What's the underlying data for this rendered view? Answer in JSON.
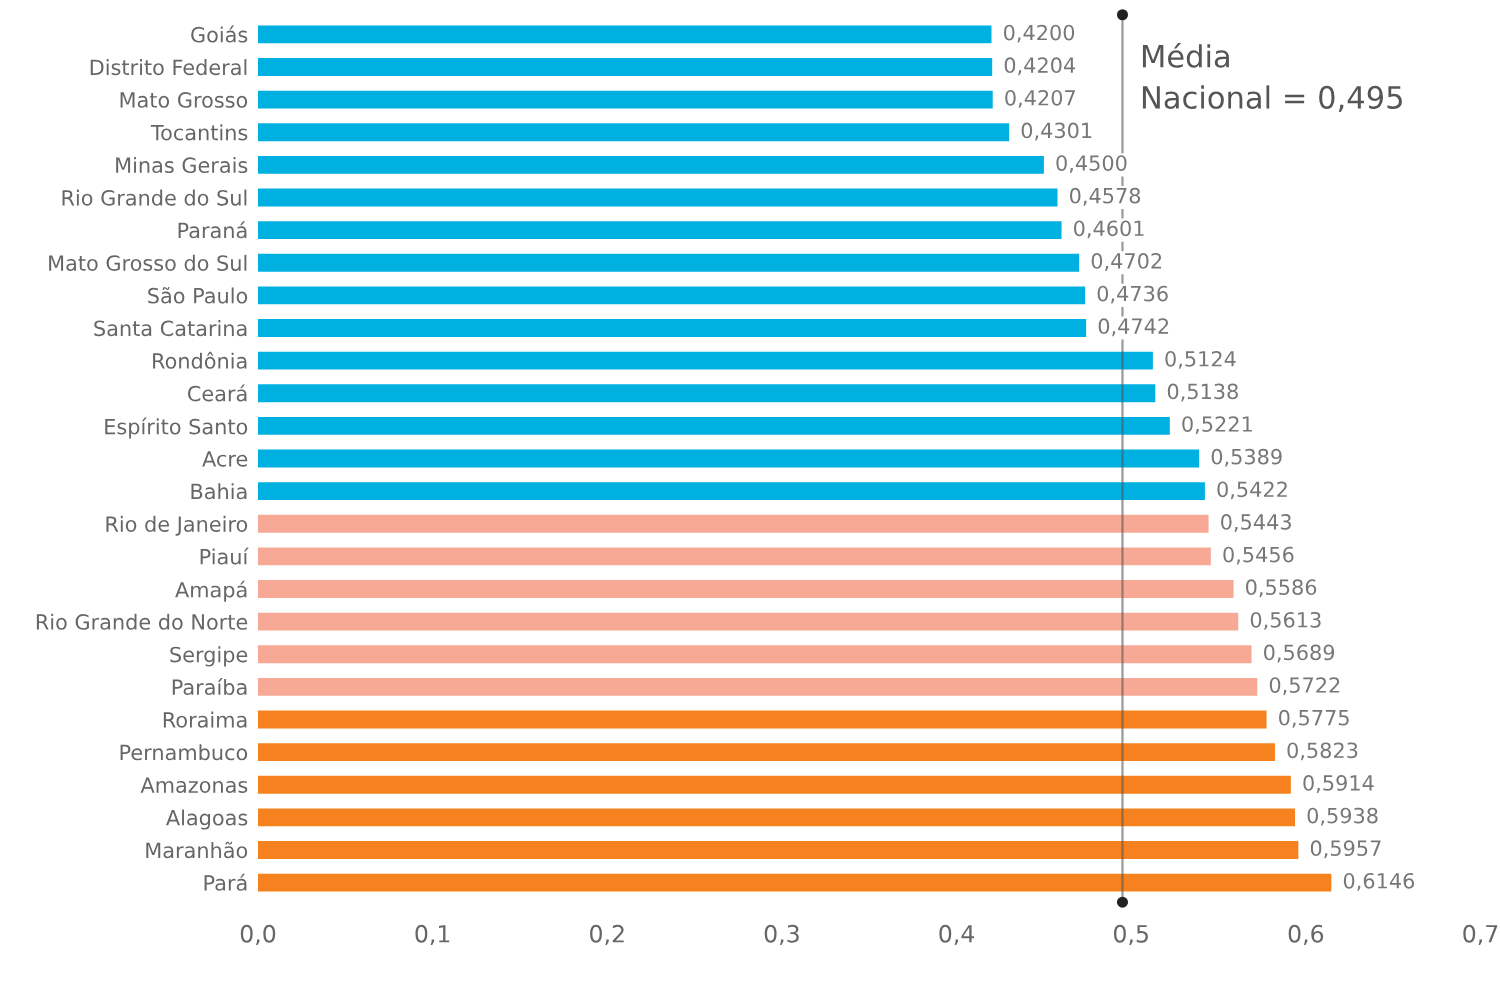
{
  "chart_data": {
    "type": "bar",
    "orientation": "horizontal",
    "categories": [
      "Goiás",
      "Distrito Federal",
      "Mato Grosso",
      "Tocantins",
      "Minas Gerais",
      "Rio Grande do Sul",
      "Paraná",
      "Mato Grosso do Sul",
      "São Paulo",
      "Santa Catarina",
      "Rondônia",
      "Ceará",
      "Espírito Santo",
      "Acre",
      "Bahia",
      "Rio de Janeiro",
      "Piauí",
      "Amapá",
      "Rio Grande do Norte",
      "Sergipe",
      "Paraíba",
      "Roraima",
      "Pernambuco",
      "Amazonas",
      "Alagoas",
      "Maranhão",
      "Pará"
    ],
    "values": [
      0.42,
      0.4204,
      0.4207,
      0.4301,
      0.45,
      0.4578,
      0.4601,
      0.4702,
      0.4736,
      0.4742,
      0.5124,
      0.5138,
      0.5221,
      0.5389,
      0.5422,
      0.5443,
      0.5456,
      0.5586,
      0.5613,
      0.5689,
      0.5722,
      0.5775,
      0.5823,
      0.5914,
      0.5938,
      0.5957,
      0.6146
    ],
    "value_labels": [
      "0,4200",
      "0,4204",
      "0,4207",
      "0,4301",
      "0,4500",
      "0,4578",
      "0,4601",
      "0,4702",
      "0,4736",
      "0,4742",
      "0,5124",
      "0,5138",
      "0,5221",
      "0,5389",
      "0,5422",
      "0,5443",
      "0,5456",
      "0,5586",
      "0,5613",
      "0,5689",
      "0,5722",
      "0,5775",
      "0,5823",
      "0,5914",
      "0,5938",
      "0,5957",
      "0,6146"
    ],
    "colors": [
      "#00b0e0",
      "#00b0e0",
      "#00b0e0",
      "#00b0e0",
      "#00b0e0",
      "#00b0e0",
      "#00b0e0",
      "#00b0e0",
      "#00b0e0",
      "#00b0e0",
      "#00b0e0",
      "#00b0e0",
      "#00b0e0",
      "#00b0e0",
      "#00b0e0",
      "#f7a996",
      "#f7a996",
      "#f7a996",
      "#f7a996",
      "#f7a996",
      "#f7a996",
      "#f5821f",
      "#f5821f",
      "#f5821f",
      "#f5821f",
      "#f5821f",
      "#f5821f"
    ],
    "xlim": [
      0,
      0.7
    ],
    "xticks": [
      {
        "value": 0,
        "label": "0,0"
      },
      {
        "value": 0.1,
        "label": "0,1"
      },
      {
        "value": 0.2,
        "label": "0,2"
      },
      {
        "value": 0.3,
        "label": "0,3"
      },
      {
        "value": 0.4,
        "label": "0,4"
      },
      {
        "value": 0.5,
        "label": "0,5"
      },
      {
        "value": 0.6,
        "label": "0,6"
      },
      {
        "value": 0.7,
        "label": "0,7"
      }
    ],
    "ref_lines": [
      {
        "axis": "x",
        "value": 0.495,
        "label": "Média\nNacional = 0,495",
        "color": "#555555"
      }
    ],
    "grid": false,
    "legend": false
  }
}
